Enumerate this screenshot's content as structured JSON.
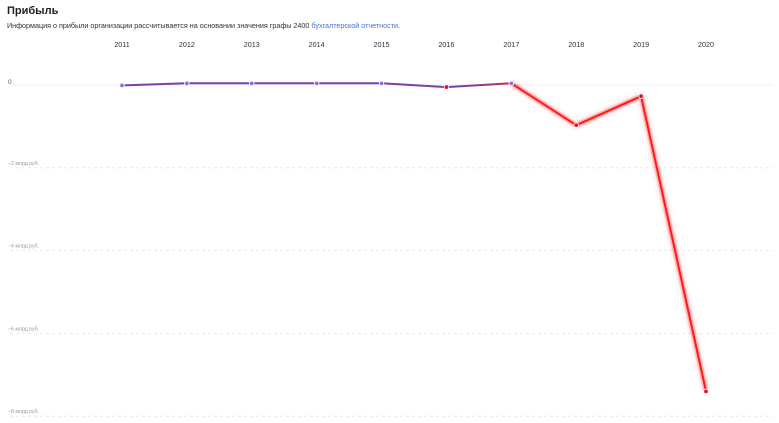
{
  "header": {
    "title": "Прибыль",
    "description_text": "Информация о прибыли организации рассчитывается на основании значения графы 2400 ",
    "description_link": "бухгалтерской отчетности",
    "description_end": "."
  },
  "colors": {
    "positive_line": "#7b3fa6",
    "negative_line": "#ff1a1a",
    "negative_glow": "#ff8080",
    "point_positive": "#8a73d6",
    "point_negative": "#e0102a",
    "link": "#4a6fd6"
  },
  "chart_data": {
    "type": "line",
    "title": "",
    "xlabel": "",
    "ylabel": "",
    "x": [
      "2011",
      "2012",
      "2013",
      "2014",
      "2015",
      "2016",
      "2017",
      "2018",
      "2019",
      "2020"
    ],
    "y_ticks": [
      {
        "value": 0,
        "label": "0"
      },
      {
        "value": -2,
        "label": "−2 млрд руб."
      },
      {
        "value": -4,
        "label": "−4 млрд руб."
      },
      {
        "value": -6,
        "label": "−6 млрд руб."
      },
      {
        "value": -8,
        "label": "−8 млрд руб."
      }
    ],
    "ylim": [
      -8,
      0.3
    ],
    "grid": true,
    "series": [
      {
        "values": [
          -0.01,
          0.04,
          0.04,
          0.04,
          0.04,
          -0.05,
          0.04,
          -0.97,
          -0.27,
          -7.4
        ]
      }
    ]
  }
}
